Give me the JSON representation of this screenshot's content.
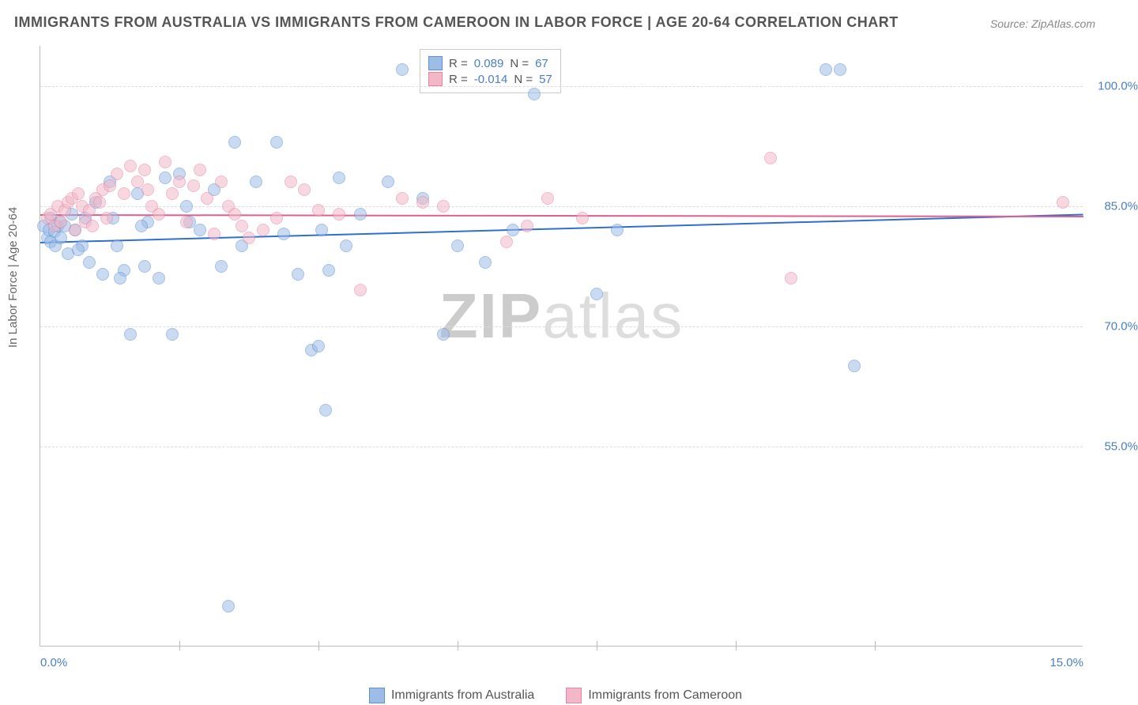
{
  "title": "IMMIGRANTS FROM AUSTRALIA VS IMMIGRANTS FROM CAMEROON IN LABOR FORCE | AGE 20-64 CORRELATION CHART",
  "source": "Source: ZipAtlas.com",
  "y_axis_label": "In Labor Force | Age 20-64",
  "watermark_brand": "ZIP",
  "watermark_suffix": "atlas",
  "chart": {
    "type": "scatter",
    "xlim": [
      0,
      15
    ],
    "ylim": [
      30,
      105
    ],
    "x_ticks": [
      0,
      2,
      4,
      6,
      8,
      10,
      12,
      15
    ],
    "x_tick_labels": {
      "0": "0.0%",
      "15": "15.0%"
    },
    "y_ticks": [
      55,
      70,
      85,
      100
    ],
    "y_tick_labels": {
      "55": "55.0%",
      "70": "70.0%",
      "85": "85.0%",
      "100": "100.0%"
    },
    "background_color": "#ffffff",
    "grid_color": "#dddddd",
    "axis_color": "#bbbbbb",
    "tick_label_color": "#4a7ec9",
    "point_radius": 8,
    "point_opacity": 0.55,
    "series": [
      {
        "name": "Immigrants from Australia",
        "fill_color": "#9dbce6",
        "stroke_color": "#5b8fd6",
        "trend_color": "#2e6fd1",
        "trend": {
          "y_at_x0": 80.5,
          "y_at_x15": 84.0
        },
        "stats": {
          "R_label": "R = ",
          "R": "0.089",
          "N_label": "N = ",
          "N": "67"
        },
        "points": [
          [
            0.05,
            82.5
          ],
          [
            0.1,
            81.0
          ],
          [
            0.12,
            82.0
          ],
          [
            0.15,
            83.5
          ],
          [
            0.15,
            80.5
          ],
          [
            0.2,
            81.8
          ],
          [
            0.22,
            80.0
          ],
          [
            0.25,
            82.5
          ],
          [
            0.28,
            83.0
          ],
          [
            0.3,
            81.0
          ],
          [
            0.4,
            79.0
          ],
          [
            0.45,
            84.0
          ],
          [
            0.5,
            82.0
          ],
          [
            0.6,
            80.0
          ],
          [
            0.65,
            83.5
          ],
          [
            0.7,
            78.0
          ],
          [
            0.8,
            85.5
          ],
          [
            0.9,
            76.5
          ],
          [
            1.0,
            88.0
          ],
          [
            1.05,
            83.5
          ],
          [
            1.1,
            80.0
          ],
          [
            1.2,
            77.0
          ],
          [
            1.3,
            69.0
          ],
          [
            1.4,
            86.5
          ],
          [
            1.5,
            77.5
          ],
          [
            1.55,
            83.0
          ],
          [
            1.7,
            76.0
          ],
          [
            1.8,
            88.5
          ],
          [
            1.9,
            69.0
          ],
          [
            2.0,
            89.0
          ],
          [
            2.1,
            85.0
          ],
          [
            2.15,
            83.0
          ],
          [
            2.3,
            82.0
          ],
          [
            2.5,
            87.0
          ],
          [
            2.6,
            77.5
          ],
          [
            2.7,
            35.0
          ],
          [
            2.8,
            93.0
          ],
          [
            3.1,
            88.0
          ],
          [
            3.4,
            93.0
          ],
          [
            3.5,
            81.5
          ],
          [
            3.7,
            76.5
          ],
          [
            3.9,
            67.0
          ],
          [
            4.0,
            67.5
          ],
          [
            4.05,
            82.0
          ],
          [
            4.1,
            59.5
          ],
          [
            4.15,
            77.0
          ],
          [
            4.3,
            88.5
          ],
          [
            4.4,
            80.0
          ],
          [
            4.6,
            84.0
          ],
          [
            5.0,
            88.0
          ],
          [
            5.2,
            102.0
          ],
          [
            5.5,
            86.0
          ],
          [
            5.8,
            69.0
          ],
          [
            6.0,
            80.0
          ],
          [
            6.4,
            78.0
          ],
          [
            6.8,
            82.0
          ],
          [
            7.1,
            99.0
          ],
          [
            8.0,
            74.0
          ],
          [
            8.3,
            82.0
          ],
          [
            11.3,
            102.0
          ],
          [
            11.5,
            102.0
          ],
          [
            11.7,
            65.0
          ],
          [
            0.35,
            82.5
          ],
          [
            0.55,
            79.5
          ],
          [
            1.15,
            76.0
          ],
          [
            1.45,
            82.5
          ],
          [
            2.9,
            80.0
          ]
        ]
      },
      {
        "name": "Immigrants from Cameroon",
        "fill_color": "#f2b8c8",
        "stroke_color": "#e585a5",
        "trend_color": "#e15f8c",
        "trend": {
          "y_at_x0": 84.0,
          "y_at_x15": 83.8
        },
        "stats": {
          "R_label": "R = ",
          "R": "-0.014",
          "N_label": "N = ",
          "N": "57"
        },
        "points": [
          [
            0.1,
            83.5
          ],
          [
            0.15,
            84.0
          ],
          [
            0.2,
            82.5
          ],
          [
            0.25,
            85.0
          ],
          [
            0.3,
            83.0
          ],
          [
            0.35,
            84.5
          ],
          [
            0.4,
            85.5
          ],
          [
            0.45,
            86.0
          ],
          [
            0.5,
            82.0
          ],
          [
            0.55,
            86.5
          ],
          [
            0.6,
            85.0
          ],
          [
            0.65,
            83.0
          ],
          [
            0.7,
            84.5
          ],
          [
            0.75,
            82.5
          ],
          [
            0.8,
            86.0
          ],
          [
            0.85,
            85.5
          ],
          [
            0.9,
            87.0
          ],
          [
            0.95,
            83.5
          ],
          [
            1.0,
            87.5
          ],
          [
            1.1,
            89.0
          ],
          [
            1.2,
            86.5
          ],
          [
            1.3,
            90.0
          ],
          [
            1.4,
            88.0
          ],
          [
            1.5,
            89.5
          ],
          [
            1.55,
            87.0
          ],
          [
            1.6,
            85.0
          ],
          [
            1.7,
            84.0
          ],
          [
            1.8,
            90.5
          ],
          [
            1.9,
            86.5
          ],
          [
            2.0,
            88.0
          ],
          [
            2.1,
            83.0
          ],
          [
            2.2,
            87.5
          ],
          [
            2.3,
            89.5
          ],
          [
            2.4,
            86.0
          ],
          [
            2.5,
            81.5
          ],
          [
            2.6,
            88.0
          ],
          [
            2.7,
            85.0
          ],
          [
            2.8,
            84.0
          ],
          [
            2.9,
            82.5
          ],
          [
            3.0,
            81.0
          ],
          [
            3.2,
            82.0
          ],
          [
            3.4,
            83.5
          ],
          [
            3.6,
            88.0
          ],
          [
            3.8,
            87.0
          ],
          [
            4.0,
            84.5
          ],
          [
            4.3,
            84.0
          ],
          [
            4.6,
            74.5
          ],
          [
            5.2,
            86.0
          ],
          [
            5.5,
            85.5
          ],
          [
            5.8,
            85.0
          ],
          [
            6.7,
            80.5
          ],
          [
            7.0,
            82.5
          ],
          [
            7.3,
            86.0
          ],
          [
            7.8,
            83.5
          ],
          [
            10.5,
            91.0
          ],
          [
            10.8,
            76.0
          ],
          [
            14.7,
            85.5
          ]
        ]
      }
    ]
  },
  "legend": {
    "items": [
      "Immigrants from Australia",
      "Immigrants from Cameroon"
    ]
  }
}
